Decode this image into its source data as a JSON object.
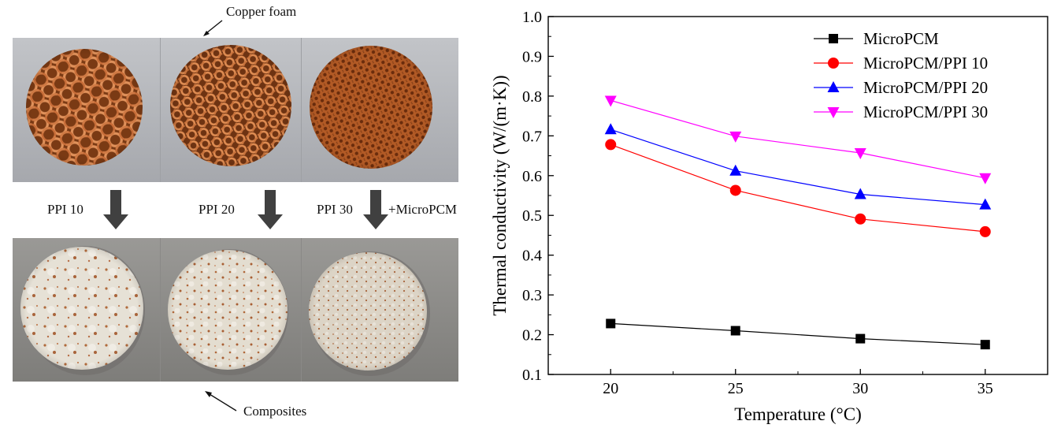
{
  "figure": {
    "left_panel": {
      "top_annotation": "Copper foam",
      "bottom_annotation": "Composites",
      "arrow_labels": [
        "PPI 10",
        "PPI 20",
        "PPI 30"
      ],
      "extra_label": "+MicroPCM",
      "colors": {
        "copper": "#c8713a",
        "copper_dark": "#7a3a14",
        "composite": "#e2ddd2",
        "photo_bg_top": "#b8bbc0",
        "photo_bg_bottom": "#8e8d8b",
        "arrow": "#404040"
      }
    }
  },
  "chart_data": {
    "type": "line",
    "x": [
      20,
      25,
      30,
      35
    ],
    "xlabel": "Temperature (°C)",
    "ylabel": "Thermal conductivity (W/(m·K))",
    "xlim": [
      17.5,
      37.5
    ],
    "ylim": [
      0.1,
      1.0
    ],
    "xticks": [
      "20",
      "25",
      "30",
      "35"
    ],
    "yticks": [
      "0.1",
      "0.2",
      "0.3",
      "0.4",
      "0.5",
      "0.6",
      "0.7",
      "0.8",
      "0.9",
      "1.0"
    ],
    "grid": false,
    "legend_position": "top-right",
    "series": [
      {
        "name": "MicroPCM",
        "values": [
          0.228,
          0.21,
          0.19,
          0.175
        ],
        "color": "#000000",
        "marker": "square"
      },
      {
        "name": "MicroPCM/PPI 10",
        "values": [
          0.678,
          0.563,
          0.491,
          0.459
        ],
        "color": "#ff0000",
        "marker": "circle"
      },
      {
        "name": "MicroPCM/PPI 20",
        "values": [
          0.716,
          0.612,
          0.553,
          0.527
        ],
        "color": "#0000ff",
        "marker": "triangle-up"
      },
      {
        "name": "MicroPCM/PPI 30",
        "values": [
          0.789,
          0.699,
          0.657,
          0.594
        ],
        "color": "#ff00ff",
        "marker": "triangle-down"
      }
    ]
  }
}
